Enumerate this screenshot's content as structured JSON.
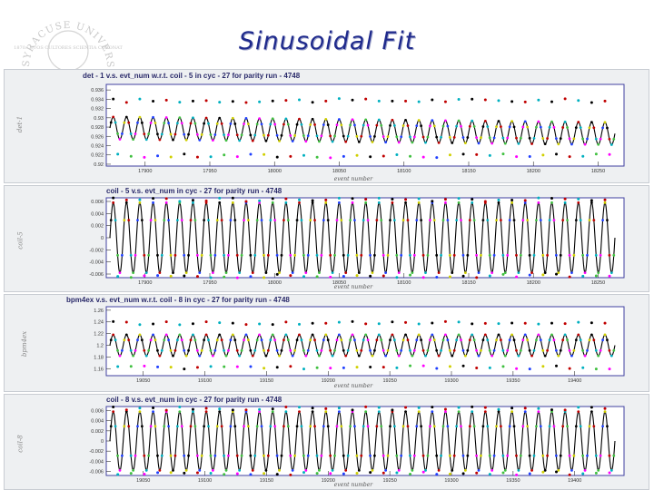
{
  "slide": {
    "title": "Sinusoidal Fit",
    "seal_text": "SYRACUSE UNIVERSITY",
    "seal_motto": "1870 · SUOS CULTORES SCIENTIA CORONAT"
  },
  "colors": {
    "fit_line": "#000000",
    "frame": "#4040a0",
    "bg": "#ffffff",
    "markers": [
      "#000000",
      "#c00000",
      "#00b0c0",
      "#40c040",
      "#ff00ff",
      "#2040ff",
      "#d0d000"
    ]
  },
  "chart_data": [
    {
      "type": "scatter",
      "title": "det - 1 v.s. evt_num w.r.t. coil - 5 in cyc - 27 for parity run - 4748",
      "ylabel": "det-1",
      "xlabel": "event number",
      "xticks": [
        "17900",
        "17950",
        "18000",
        "18050",
        "18100",
        "18150",
        "18200",
        "18250"
      ],
      "xrange": [
        17870,
        18270
      ],
      "yticks": [
        "0.936",
        "0.934",
        "0.932",
        "0.93",
        "0.928",
        "0.926",
        "0.924",
        "0.922",
        "0.92"
      ],
      "yrange": [
        0.9196,
        0.9372
      ],
      "fit": {
        "center": 0.9278,
        "amplitude": 0.0024,
        "cycles": 38,
        "drift": -0.0012
      },
      "outliers": {
        "upper": 0.9337,
        "lower": 0.9218
      }
    },
    {
      "type": "scatter",
      "title": "coil - 5 v.s. evt_num in cyc - 27 for parity run - 4748",
      "ylabel": "coil-5",
      "xlabel": "event number",
      "xticks": [
        "17900",
        "17950",
        "18000",
        "18050",
        "18100",
        "18150",
        "18200",
        "18250"
      ],
      "xrange": [
        17870,
        18270
      ],
      "yticks": [
        "0.006",
        "0.004",
        "0.002",
        "0",
        "-0.002",
        "-0.004",
        "-0.006"
      ],
      "yrange": [
        -0.0066,
        0.0066
      ],
      "fit": {
        "center": 0,
        "amplitude": 0.0058,
        "cycles": 38,
        "drift": 0
      },
      "outliers": {
        "upper": 0.0063,
        "lower": -0.0063
      }
    },
    {
      "type": "scatter",
      "title": "bpm4ex v.s. evt_num w.r.t. coil - 8 in cyc - 27 for parity run - 4748",
      "ylabel": "bpm4ex",
      "xlabel": "event number",
      "xticks": [
        "19050",
        "19100",
        "19150",
        "19200",
        "19250",
        "19300",
        "19350",
        "19400"
      ],
      "xrange": [
        19020,
        19440
      ],
      "yticks": [
        "1.26",
        "1.24",
        "1.22",
        "1.2",
        "1.18",
        "1.16"
      ],
      "yrange": [
        1.148,
        1.266
      ],
      "fit": {
        "center": 1.2,
        "amplitude": 0.018,
        "cycles": 38,
        "drift": 0
      },
      "outliers": {
        "upper": 1.238,
        "lower": 1.162
      }
    },
    {
      "type": "scatter",
      "title": "coil - 8 v.s. evt_num in cyc - 27 for parity run - 4748",
      "ylabel": "coil-8",
      "xlabel": "event number",
      "xticks": [
        "19050",
        "19100",
        "19150",
        "19200",
        "19250",
        "19300",
        "19350",
        "19400"
      ],
      "xrange": [
        19020,
        19440
      ],
      "yticks": [
        "0.006",
        "0.004",
        "0.002",
        "0",
        "-0.002",
        "-0.004",
        "-0.006"
      ],
      "yrange": [
        -0.0068,
        0.0068
      ],
      "fit": {
        "center": 0,
        "amplitude": 0.0058,
        "cycles": 38,
        "drift": 0
      },
      "outliers": {
        "upper": 0.0064,
        "lower": -0.0064
      }
    }
  ]
}
